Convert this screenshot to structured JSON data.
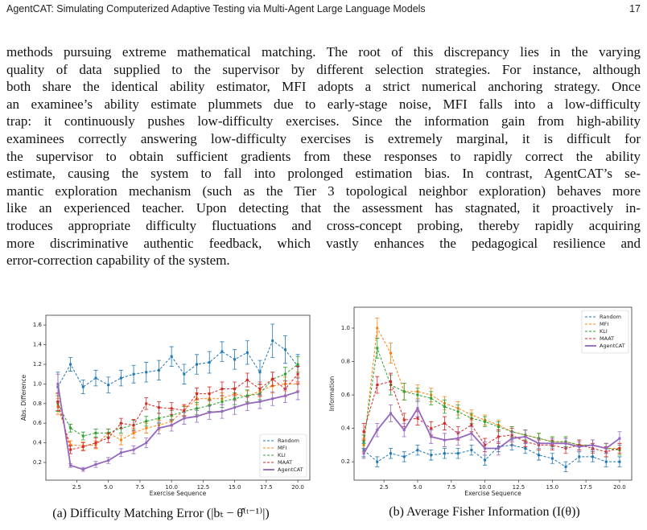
{
  "header": {
    "title": "AgentCAT: Simulating Computerized Adaptive Testing via Multi-Agent Large Language Models",
    "page": "17"
  },
  "body": {
    "lines": [
      "methods pursuing extreme mathematical matching. The root of this discrepancy lies in the varying",
      "quality of data supplied to the supervisor by different selection strategies. For instance, although",
      "both share the identical ability estimator, MFI adopts a strict numerical anchoring strategy. Once",
      "an examinee’s ability estimate plummets due to early-stage noise, MFI falls into a low-difficulty",
      "trap: it continuously pushes low-difficulty exercises. Since the information gain from high-ability",
      "examinees correctly answering low-difficulty exercises is extremely marginal, it is difficult for",
      "the supervisor to obtain sufficient gradients from these responses to rapidly correct the ability",
      "estimate, causing the system to fall into prolonged estimation bias. In contrast, AgentCAT’s se-",
      "mantic exploration mechanism (such as the Tier 3 topological neighbor exploration) behaves more",
      "like an experienced teacher. Upon detecting that the assessment has stagnated, it proactively in-",
      "troduces appropriate difficulty fluctuations and cross-concept probing, thereby rapidly acquiring",
      "more discriminative authentic feedback, which vastly enhances the pedagogical resilience and",
      "error-correction capability of the system."
    ]
  },
  "chart_data": [
    {
      "type": "line",
      "caption": "(a) Difficulty Matching Error (|bₜ − θ̂⁽ᵗ⁻¹⁾|)",
      "x_label": "Exercise Sequence",
      "y_label": "Abs. Difference",
      "legend": "lower right",
      "x": [
        1,
        2,
        3,
        4,
        5,
        6,
        7,
        8,
        9,
        10,
        11,
        12,
        13,
        14,
        15,
        16,
        17,
        18,
        19,
        20
      ],
      "xlim": [
        0.05,
        20.95
      ],
      "ylim": [
        0.02,
        1.7
      ],
      "xticks": [
        2.5,
        {
          "value": 5,
          "label": "5.0"
        },
        7.5,
        {
          "value": 10,
          "label": "10.0"
        },
        12.5,
        {
          "value": 15,
          "label": "15.0"
        },
        17.5,
        {
          "value": 20,
          "label": "20.0"
        }
      ],
      "yticks": [
        0.2,
        0.4,
        0.6,
        0.8,
        {
          "value": 1,
          "label": "1.0"
        },
        1.2,
        1.4,
        1.6
      ],
      "series": [
        {
          "name": "Random",
          "color": "#1f77b4",
          "style": "dashed",
          "values": [
            0.97,
            1.2,
            0.97,
            1.06,
            0.99,
            1.06,
            1.1,
            1.12,
            1.14,
            1.28,
            1.1,
            1.2,
            1.22,
            1.33,
            1.25,
            1.32,
            1.12,
            1.44,
            1.35,
            1.18
          ],
          "errors": [
            0.15,
            0.07,
            0.07,
            0.08,
            0.08,
            0.08,
            0.09,
            0.1,
            0.1,
            0.1,
            0.1,
            0.1,
            0.11,
            0.1,
            0.1,
            0.12,
            0.12,
            0.17,
            0.14,
            0.12
          ]
        },
        {
          "name": "MFI",
          "color": "#ff7f0e",
          "style": "dashed",
          "values": [
            0.77,
            0.38,
            0.37,
            0.38,
            0.5,
            0.43,
            0.5,
            0.55,
            0.58,
            0.62,
            0.73,
            0.85,
            0.85,
            0.85,
            0.9,
            0.87,
            0.93,
            0.98,
            1.0,
            1.0
          ],
          "errors": [
            0.08,
            0.04,
            0.04,
            0.04,
            0.04,
            0.05,
            0.05,
            0.05,
            0.05,
            0.05,
            0.05,
            0.06,
            0.06,
            0.06,
            0.06,
            0.06,
            0.06,
            0.07,
            0.07,
            0.07
          ]
        },
        {
          "name": "KLI",
          "color": "#2ca02c",
          "style": "dashed",
          "values": [
            0.8,
            0.55,
            0.47,
            0.5,
            0.5,
            0.55,
            0.58,
            0.62,
            0.65,
            0.68,
            0.72,
            0.75,
            0.78,
            0.82,
            0.85,
            0.88,
            0.9,
            1.05,
            1.1,
            1.2
          ],
          "errors": [
            0.08,
            0.04,
            0.04,
            0.04,
            0.04,
            0.05,
            0.05,
            0.05,
            0.05,
            0.05,
            0.05,
            0.06,
            0.06,
            0.06,
            0.06,
            0.06,
            0.06,
            0.07,
            0.07,
            0.08
          ]
        },
        {
          "name": "MAAT",
          "color": "#d62728",
          "style": "dashed",
          "values": [
            0.82,
            0.33,
            0.36,
            0.4,
            0.45,
            0.6,
            0.58,
            0.8,
            0.76,
            0.75,
            0.73,
            0.9,
            0.9,
            0.95,
            0.95,
            1.04,
            0.95,
            1.05,
            0.95,
            1.1
          ],
          "errors": [
            0.09,
            0.04,
            0.04,
            0.05,
            0.05,
            0.05,
            0.06,
            0.06,
            0.06,
            0.06,
            0.06,
            0.06,
            0.07,
            0.07,
            0.07,
            0.07,
            0.07,
            0.07,
            0.08,
            0.08
          ]
        },
        {
          "name": "AgentCAT",
          "color": "#9467bd",
          "style": "solid",
          "values": [
            1.0,
            0.17,
            0.13,
            0.18,
            0.22,
            0.3,
            0.33,
            0.4,
            0.55,
            0.58,
            0.65,
            0.67,
            0.71,
            0.72,
            0.76,
            0.8,
            0.82,
            0.85,
            0.88,
            0.92
          ],
          "errors": [
            0.1,
            0.02,
            0.02,
            0.03,
            0.03,
            0.04,
            0.04,
            0.05,
            0.06,
            0.06,
            0.06,
            0.06,
            0.07,
            0.07,
            0.07,
            0.07,
            0.07,
            0.07,
            0.07,
            0.08
          ]
        }
      ]
    },
    {
      "type": "line",
      "caption": "(b) Average Fisher Information (I(θ))",
      "x_label": "Exercise Sequence",
      "y_label": "Information",
      "legend": "upper right",
      "x": [
        1,
        2,
        3,
        4,
        5,
        6,
        7,
        8,
        9,
        10,
        11,
        12,
        13,
        14,
        15,
        16,
        17,
        18,
        19,
        20
      ],
      "xlim": [
        0.28,
        20.9
      ],
      "ylim": [
        0.09,
        1.125
      ],
      "xticks": [
        2.5,
        {
          "value": 5,
          "label": "5.0"
        },
        7.5,
        {
          "value": 10,
          "label": "10.0"
        },
        12.5,
        {
          "value": 15,
          "label": "15.0"
        },
        17.5,
        {
          "value": 20,
          "label": "20.0"
        }
      ],
      "yticks": [
        0.2,
        0.4,
        0.6,
        0.8,
        {
          "value": 1,
          "label": "1.0"
        }
      ],
      "series": [
        {
          "name": "Random",
          "color": "#1f77b4",
          "style": "dashed",
          "values": [
            0.27,
            0.2,
            0.25,
            0.23,
            0.27,
            0.24,
            0.25,
            0.25,
            0.27,
            0.21,
            0.29,
            0.3,
            0.28,
            0.24,
            0.22,
            0.17,
            0.23,
            0.23,
            0.2,
            0.2
          ],
          "errors": [
            0.04,
            0.03,
            0.03,
            0.03,
            0.03,
            0.03,
            0.03,
            0.03,
            0.03,
            0.03,
            0.03,
            0.03,
            0.03,
            0.03,
            0.03,
            0.03,
            0.03,
            0.03,
            0.03,
            0.03
          ]
        },
        {
          "name": "MFI",
          "color": "#ff7f0e",
          "style": "dashed",
          "values": [
            0.3,
            1.0,
            0.85,
            0.62,
            0.62,
            0.6,
            0.55,
            0.52,
            0.48,
            0.45,
            0.42,
            0.38,
            0.36,
            0.34,
            0.32,
            0.32,
            0.3,
            0.3,
            0.28,
            0.28
          ],
          "errors": [
            0.04,
            0.06,
            0.06,
            0.05,
            0.04,
            0.04,
            0.04,
            0.04,
            0.03,
            0.03,
            0.03,
            0.03,
            0.03,
            0.03,
            0.03,
            0.03,
            0.03,
            0.03,
            0.03,
            0.03
          ]
        },
        {
          "name": "KLI",
          "color": "#2ca02c",
          "style": "dashed",
          "values": [
            0.32,
            0.88,
            0.66,
            0.62,
            0.6,
            0.58,
            0.53,
            0.5,
            0.46,
            0.44,
            0.41,
            0.38,
            0.36,
            0.34,
            0.32,
            0.32,
            0.3,
            0.3,
            0.28,
            0.27
          ],
          "errors": [
            0.04,
            0.06,
            0.06,
            0.05,
            0.04,
            0.04,
            0.04,
            0.04,
            0.03,
            0.03,
            0.03,
            0.03,
            0.03,
            0.03,
            0.03,
            0.03,
            0.03,
            0.03,
            0.03,
            0.03
          ]
        },
        {
          "name": "MAAT",
          "color": "#d62728",
          "style": "dashed",
          "values": [
            0.38,
            0.66,
            0.68,
            0.45,
            0.46,
            0.4,
            0.43,
            0.37,
            0.42,
            0.3,
            0.35,
            0.36,
            0.32,
            0.3,
            0.3,
            0.28,
            0.3,
            0.28,
            0.26,
            0.28
          ],
          "errors": [
            0.05,
            0.05,
            0.05,
            0.04,
            0.04,
            0.04,
            0.04,
            0.04,
            0.04,
            0.04,
            0.04,
            0.04,
            0.03,
            0.03,
            0.03,
            0.03,
            0.03,
            0.03,
            0.03,
            0.03
          ]
        },
        {
          "name": "AgentCAT",
          "color": "#9467bd",
          "style": "solid",
          "values": [
            0.25,
            0.39,
            0.49,
            0.39,
            0.52,
            0.35,
            0.33,
            0.34,
            0.37,
            0.28,
            0.28,
            0.34,
            0.35,
            0.31,
            0.31,
            0.31,
            0.29,
            0.3,
            0.28,
            0.34
          ],
          "errors": [
            0.03,
            0.04,
            0.05,
            0.04,
            0.05,
            0.04,
            0.04,
            0.04,
            0.04,
            0.04,
            0.04,
            0.04,
            0.04,
            0.03,
            0.03,
            0.03,
            0.03,
            0.03,
            0.03,
            0.04
          ]
        }
      ]
    }
  ]
}
